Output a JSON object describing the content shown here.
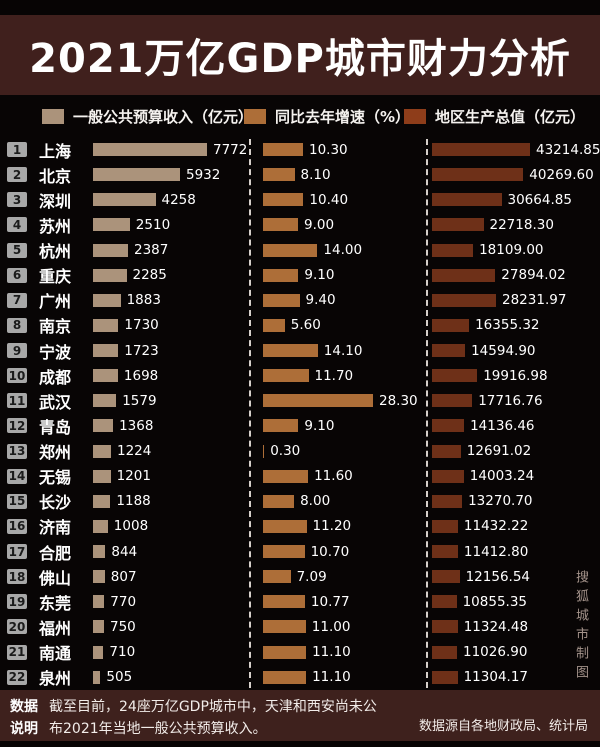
{
  "title": "2021万亿GDP城市财力分析",
  "legend": [
    {
      "label": "一般公共预算收入（亿元）",
      "color": "#ab937b"
    },
    {
      "label": "同比去年增速（%）",
      "color": "#ad6e38"
    },
    {
      "label": "地区生产总值（亿元）",
      "color": "#8e3d1a"
    }
  ],
  "watermark": "搜狐城市制图",
  "footer": {
    "note_label_line1": "数据",
    "note_label_line2": "说明",
    "note_line1": "截至目前，24座万亿GDP城市中，天津和西安尚未公",
    "note_line2": "布2021年当地一般公共预算收入。",
    "source": "数据源自各地财政局、统计局"
  },
  "chart_data": {
    "type": "bar",
    "orientation": "horizontal",
    "title": "2021万亿GDP城市财力分析",
    "categories": [
      "上海",
      "北京",
      "深圳",
      "苏州",
      "杭州",
      "重庆",
      "广州",
      "南京",
      "宁波",
      "成都",
      "武汉",
      "青岛",
      "郑州",
      "无锡",
      "长沙",
      "济南",
      "合肥",
      "佛山",
      "东莞",
      "福州",
      "南通",
      "泉州"
    ],
    "ranks": [
      1,
      2,
      3,
      4,
      5,
      6,
      7,
      8,
      9,
      10,
      11,
      12,
      13,
      14,
      15,
      16,
      17,
      18,
      19,
      20,
      21,
      22
    ],
    "series": [
      {
        "name": "一般公共预算收入（亿元）",
        "color": "#ab937b",
        "xlim": [
          0,
          7772
        ],
        "values": [
          "7772",
          "5932",
          "4258",
          "2510",
          "2387",
          "2285",
          "1883",
          "1730",
          "1723",
          "1698",
          "1579",
          "1368",
          "1224",
          "1201",
          "1188",
          "1008",
          "844",
          "807",
          "770",
          "750",
          "710",
          "505"
        ]
      },
      {
        "name": "同比去年增速（%）",
        "color": "#ad6e38",
        "xlim": [
          0,
          28.3
        ],
        "values": [
          "10.30",
          "8.10",
          "10.40",
          "9.00",
          "14.00",
          "9.10",
          "9.40",
          "5.60",
          "14.10",
          "11.70",
          "28.30",
          "9.10",
          "0.30",
          "11.60",
          "8.00",
          "11.20",
          "10.70",
          "7.09",
          "10.77",
          "11.00",
          "11.10",
          "11.10"
        ]
      },
      {
        "name": "地区生产总值（亿元）",
        "color": "#6e3018",
        "xlim": [
          0,
          43214.85
        ],
        "values": [
          "43214.85",
          "40269.60",
          "30664.85",
          "22718.30",
          "18109.00",
          "27894.02",
          "28231.97",
          "16355.32",
          "14594.90",
          "19916.98",
          "17716.76",
          "14136.46",
          "12691.02",
          "14003.24",
          "13270.70",
          "11432.22",
          "11412.80",
          "12156.54",
          "10855.35",
          "11324.48",
          "11026.90",
          "11304.17"
        ]
      }
    ],
    "legend_position": "top",
    "grid": false
  }
}
